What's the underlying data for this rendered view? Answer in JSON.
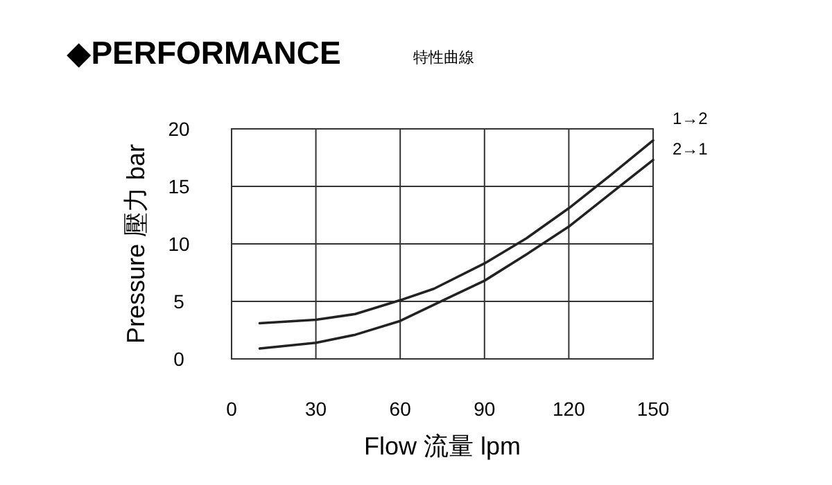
{
  "chart_data": {
    "type": "line",
    "title": "◆PERFORMANCE",
    "subtitle": "特性曲線",
    "xlabel": "Flow 流量 lpm",
    "ylabel": "Pressure 壓力 bar",
    "series": [
      {
        "name": "1→2",
        "color": "#222222",
        "x": [
          10,
          30,
          44,
          60,
          72,
          90,
          105,
          120,
          135,
          150
        ],
        "values": [
          3.1,
          3.4,
          3.9,
          5.1,
          6.1,
          8.3,
          10.5,
          13.1,
          16.0,
          19.0
        ]
      },
      {
        "name": "2→1",
        "color": "#222222",
        "x": [
          10,
          30,
          44,
          60,
          77,
          90,
          105,
          120,
          135,
          150
        ],
        "values": [
          0.9,
          1.4,
          2.1,
          3.3,
          5.3,
          6.8,
          9.1,
          11.5,
          14.4,
          17.3
        ]
      }
    ],
    "xlim": [
      0,
      150
    ],
    "ylim": [
      0,
      20
    ],
    "xticks": [
      0,
      30,
      60,
      90,
      120,
      150
    ],
    "yticks": [
      0,
      5,
      10,
      15,
      20
    ],
    "grid": true,
    "line_style": "solid"
  }
}
